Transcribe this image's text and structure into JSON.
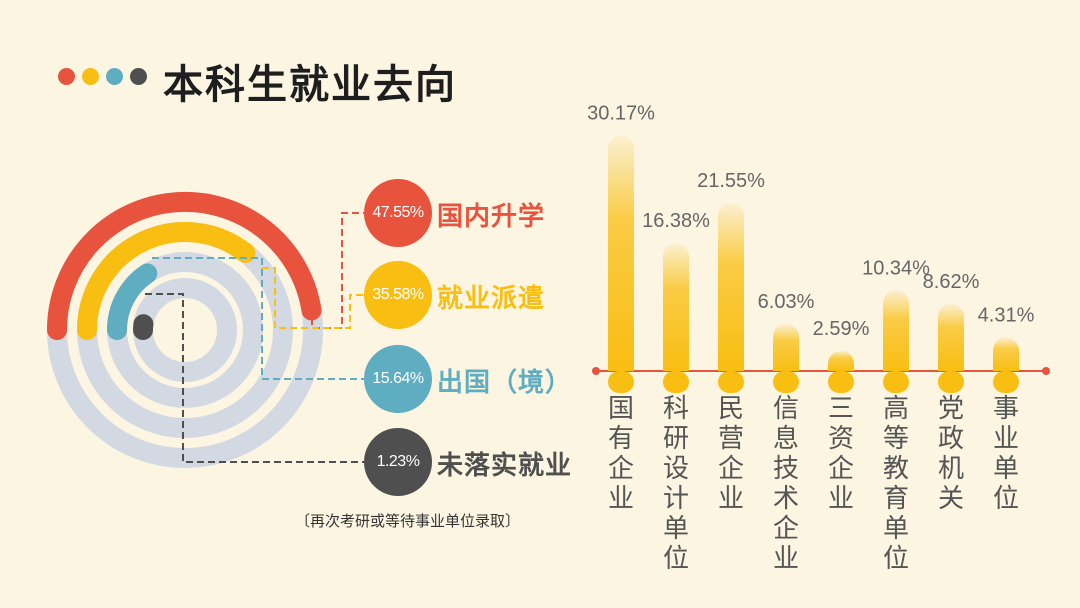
{
  "header": {
    "title": "本科生就业去向",
    "dot_colors": [
      "#E8533E",
      "#F9BE12",
      "#5FADC1",
      "#4F4F4F"
    ]
  },
  "chart_data": [
    {
      "type": "radial-bar",
      "title": "本科生就业去向",
      "unit": "%",
      "items": [
        {
          "label": "国内升学",
          "value": 47.55,
          "display": "47.55%",
          "color": "#E8533E"
        },
        {
          "label": "就业派遣",
          "value": 35.58,
          "display": "35.58%",
          "color": "#F9BE12"
        },
        {
          "label": "出国（境）",
          "value": 15.64,
          "display": "15.64%",
          "color": "#5FADC1"
        },
        {
          "label": "未落实就业",
          "value": 1.23,
          "display": "1.23%",
          "color": "#4F4F4F"
        }
      ],
      "track_color": "#D3D9E2",
      "note": "〔再次考研或等待事业单位录取〕"
    },
    {
      "type": "bar",
      "categories": [
        "国有企业",
        "科研设计单位",
        "民营企业",
        "信息技术企业",
        "三资企业",
        "高等教育单位",
        "党政机关",
        "事业单位"
      ],
      "values": [
        30.17,
        16.38,
        21.55,
        6.03,
        2.59,
        10.34,
        8.62,
        4.31
      ],
      "value_labels": [
        "30.17%",
        "16.38%",
        "21.55%",
        "6.03%",
        "2.59%",
        "10.34%",
        "8.62%",
        "4.31%"
      ],
      "unit": "%",
      "ylim": [
        0,
        31
      ],
      "bar_color": "#F9BE12",
      "baseline_color": "#E8533E"
    }
  ]
}
